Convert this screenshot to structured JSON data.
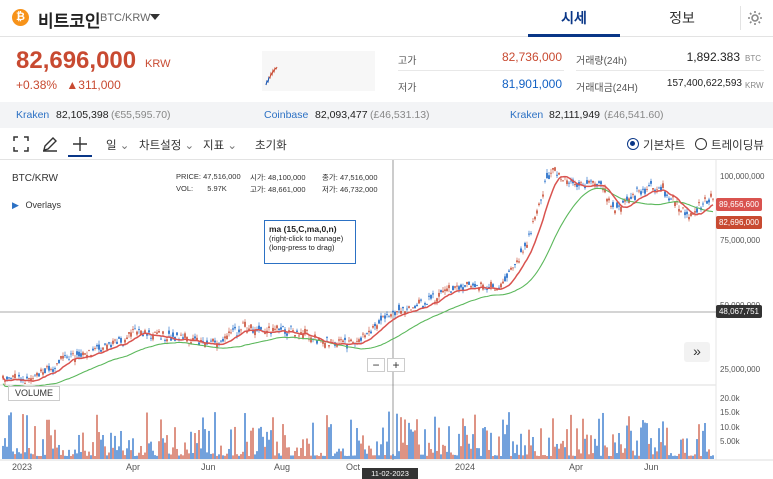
{
  "header": {
    "coin_name": "비트코인",
    "pair": "BTC/KRW",
    "tabs": [
      "시세",
      "정보"
    ],
    "active_tab": 0,
    "icons": {
      "coin": "bitcoin-icon",
      "dropdown": "chevron-down-icon",
      "settings": "gear-icon"
    }
  },
  "price": {
    "current": "82,696,000",
    "unit": "KRW",
    "change_percent": "+0.38%",
    "change_amount": "▲311,000",
    "high_label": "고가",
    "high_value": "82,736,000",
    "low_label": "저가",
    "low_value": "81,901,000",
    "volume_label": "거래량(24h)",
    "volume_value": "1,892.383",
    "volume_unit": "BTC",
    "amount_label": "거래대금(24H)",
    "amount_value": "157,400,622,593",
    "amount_unit": "KRW",
    "colors": {
      "up": "#c84a31",
      "down": "#1261c4"
    }
  },
  "exchanges": [
    {
      "name": "Kraken",
      "value": "82,105,398",
      "fiat": "(€55,595.70)"
    },
    {
      "name": "Coinbase",
      "value": "82,093,477",
      "fiat": "(£46,531.13)"
    },
    {
      "name": "Kraken",
      "value": "82,111,949",
      "fiat": "(£46,541.60)"
    }
  ],
  "toolbar": {
    "interval": "일",
    "chart_settings": "차트설정",
    "indicators": "지표",
    "reset": "초기화",
    "basic_chart": "기본차트",
    "tradingview": "트레이딩뷰",
    "icons": [
      "fullscreen-icon",
      "draw-pen-icon",
      "crosshair-icon"
    ]
  },
  "chart": {
    "symbol": "BTC/KRW",
    "overlays": "Overlays",
    "ohlc": {
      "price_label": "PRICE:",
      "price": "47,516,000",
      "open_label": "시가:",
      "open": "48,100,000",
      "close_label": "종가:",
      "close": "47,516,000",
      "vol_label": "VOL:",
      "vol": "5.97K",
      "high_label": "고가:",
      "high": "48,661,000",
      "low_label": "저가:",
      "low": "46,732,000"
    },
    "tooltip": {
      "title": "ma (15,C,ma,0,n)",
      "line1": "(right-click to manage)",
      "line2": "(long-press to drag)"
    },
    "volume_label": "VOLUME",
    "price_axis": [
      "100,000,000",
      "75,000,000",
      "50,000,000",
      "25,000,000"
    ],
    "volume_axis": [
      "20.0k",
      "15.0k",
      "10.0k",
      "5.00k"
    ],
    "x_labels": [
      "2023",
      "Apr",
      "Jun",
      "Aug",
      "Oct",
      "2024",
      "Apr",
      "Jun"
    ],
    "tags": {
      "ma": "89,656,600",
      "last": "82,696,000",
      "crosshair": "48,067,751"
    },
    "crosshair_date": "11-02-2023",
    "zoom_out": "−",
    "zoom_in": "+",
    "forward": "»",
    "colors": {
      "candle_up": "#c84a31",
      "candle_down": "#1261c4",
      "ma_fast": "#d9534f",
      "ma_slow": "#5cb85c"
    }
  }
}
